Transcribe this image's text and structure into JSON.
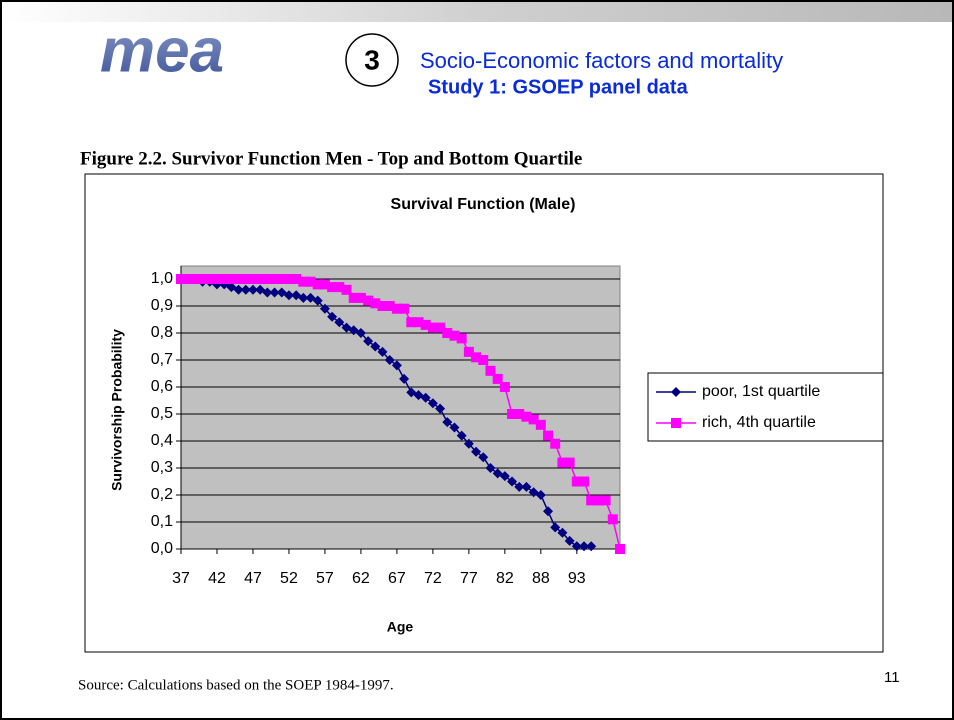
{
  "header": {
    "logo": "mea",
    "number": "3",
    "title": "Socio-Economic factors and mortality",
    "subtitle": "Study 1: GSOEP panel data"
  },
  "figure_caption": "Figure 2.2. Survivor Function Men - Top and Bottom Quartile",
  "source": "Source: Calculations based on the SOEP 1984-1997.",
  "page_number": "11",
  "chart_data": {
    "type": "line",
    "title": "Survival Function (Male)",
    "x_label": "Age",
    "y_label": "Survivorship Probability",
    "categories": [
      37,
      null,
      null,
      null,
      null,
      42,
      null,
      null,
      null,
      null,
      47,
      null,
      null,
      null,
      null,
      52,
      null,
      null,
      null,
      null,
      57,
      null,
      null,
      null,
      null,
      62,
      null,
      null,
      null,
      null,
      67,
      null,
      null,
      null,
      null,
      72,
      null,
      null,
      null,
      null,
      77,
      null,
      null,
      null,
      null,
      82,
      null,
      null,
      null,
      null,
      88,
      null,
      null,
      null,
      null,
      93,
      null,
      null,
      null,
      null,
      null,
      null
    ],
    "series": [
      {
        "name": "poor, 1st quartile",
        "color": "#000080",
        "marker": "diamond",
        "values": [
          1.0,
          1.0,
          1.0,
          0.99,
          0.99,
          0.98,
          0.98,
          0.97,
          0.96,
          0.96,
          0.96,
          0.96,
          0.95,
          0.95,
          0.95,
          0.94,
          0.94,
          0.93,
          0.93,
          0.92,
          0.89,
          0.86,
          0.84,
          0.82,
          0.81,
          0.8,
          0.77,
          0.75,
          0.73,
          0.7,
          0.68,
          0.63,
          0.58,
          0.57,
          0.56,
          0.54,
          0.52,
          0.47,
          0.45,
          0.42,
          0.39,
          0.36,
          0.34,
          0.3,
          0.28,
          0.27,
          0.25,
          0.23,
          0.23,
          0.21,
          0.2,
          0.14,
          0.08,
          0.06,
          0.03,
          0.01,
          0.01,
          0.01,
          null,
          null,
          null,
          null
        ]
      },
      {
        "name": "rich, 4th quartile",
        "color": "#ff00ff",
        "marker": "square",
        "values": [
          1.0,
          1.0,
          1.0,
          1.0,
          1.0,
          1.0,
          1.0,
          1.0,
          1.0,
          1.0,
          1.0,
          1.0,
          1.0,
          1.0,
          1.0,
          1.0,
          1.0,
          0.99,
          0.99,
          0.98,
          0.98,
          0.97,
          0.97,
          0.96,
          0.93,
          0.93,
          0.92,
          0.91,
          0.9,
          0.9,
          0.89,
          0.89,
          0.84,
          0.84,
          0.83,
          0.82,
          0.82,
          0.8,
          0.79,
          0.78,
          0.73,
          0.71,
          0.7,
          0.66,
          0.63,
          0.6,
          0.5,
          0.5,
          0.49,
          0.48,
          0.46,
          0.42,
          0.39,
          0.32,
          0.32,
          0.25,
          0.25,
          0.18,
          0.18,
          0.18,
          0.11,
          0.0
        ]
      }
    ],
    "ylim": [
      0,
      1
    ],
    "yticks": [
      {
        "value": 0,
        "label": "0,0"
      },
      {
        "value": 0.1,
        "label": "0,1"
      },
      {
        "value": 0.2,
        "label": "0,2"
      },
      {
        "value": 0.3,
        "label": "0,3"
      },
      {
        "value": 0.4,
        "label": "0,4"
      },
      {
        "value": 0.5,
        "label": "0,5"
      },
      {
        "value": 0.6,
        "label": "0,6"
      },
      {
        "value": 0.7,
        "label": "0,7"
      },
      {
        "value": 0.8,
        "label": "0,8"
      },
      {
        "value": 0.9,
        "label": "0,9"
      },
      {
        "value": 1,
        "label": "1,0"
      }
    ],
    "grid": true,
    "plot_background": "#c0c0c0",
    "legend": "right"
  }
}
